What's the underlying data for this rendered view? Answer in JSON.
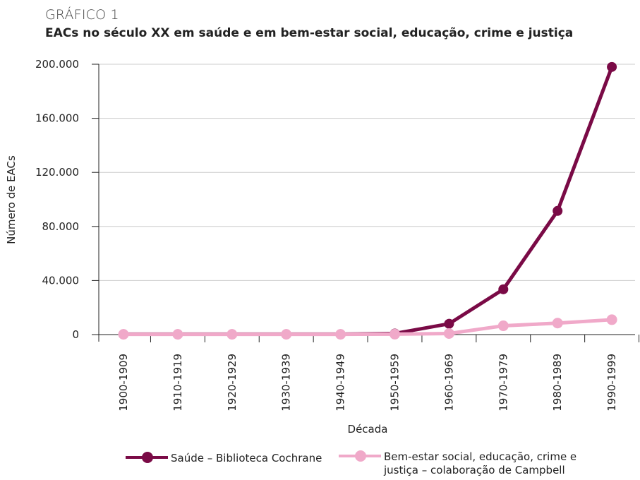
{
  "header": {
    "kicker": "GRÁFICO 1",
    "title": "EACs no século XX em saúde e em bem-estar social, educação, crime e justiça"
  },
  "colors": {
    "series_0": "#7a0a46",
    "series_1": "#f0a9c9",
    "grid": "#cccccc",
    "axis": "#222222"
  },
  "chart_data": {
    "type": "line",
    "title": "EACs no século XX em saúde e em bem-estar social, educação, crime e justiça",
    "xlabel": "Década",
    "ylabel": "Número de EACs",
    "categories": [
      "1900-1909",
      "1910-1919",
      "1920-1929",
      "1930-1939",
      "1940-1949",
      "1950-1959",
      "1960-1969",
      "1970-1979",
      "1980-1989",
      "1990-1999"
    ],
    "ylim": [
      0,
      200000
    ],
    "yticks": [
      0,
      40000,
      80000,
      120000,
      160000,
      200000
    ],
    "ytick_labels": [
      "0",
      "40.000",
      "80.000",
      "120.000",
      "160.000",
      "200.000"
    ],
    "grid": "horizontal",
    "legend_position": "bottom",
    "series": [
      {
        "name": "Saúde – Biblioteca Cochrane",
        "values": [
          300,
          300,
          300,
          300,
          300,
          800,
          8000,
          33500,
          91500,
          198000
        ]
      },
      {
        "name": "Bem-estar social, educação, crime e justiça – colaboração de Campbell",
        "values": [
          200,
          200,
          200,
          200,
          200,
          300,
          800,
          6500,
          8500,
          11000
        ]
      }
    ]
  }
}
